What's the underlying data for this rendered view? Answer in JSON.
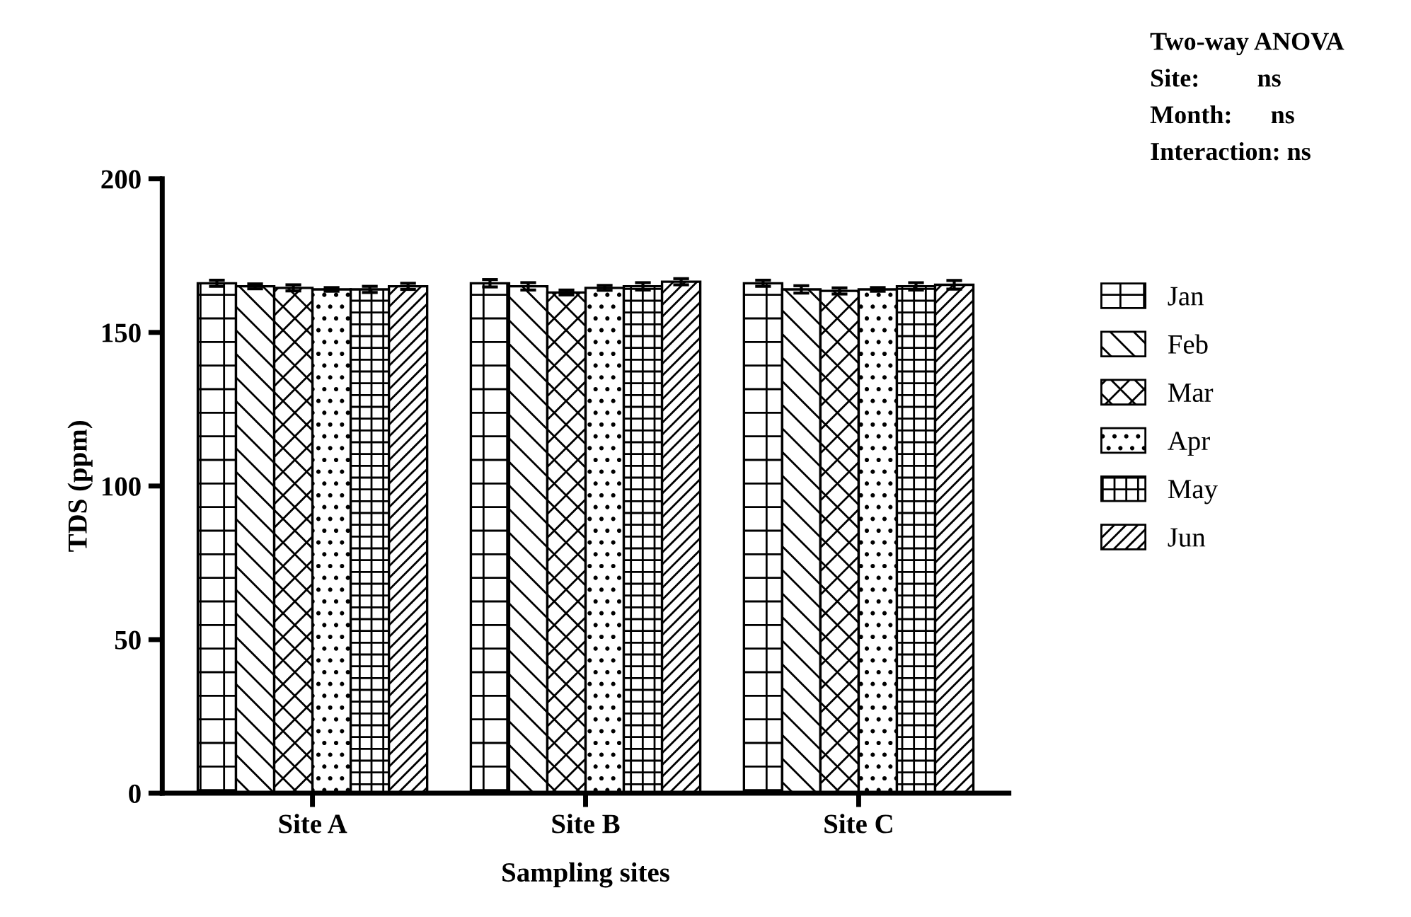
{
  "chart_data": {
    "type": "bar",
    "xlabel": "Sampling sites",
    "ylabel": "TDS (ppm)",
    "categories": [
      "Site A",
      "Site B",
      "Site C"
    ],
    "series": [
      {
        "name": "Jan",
        "color": "#000000",
        "values": [
          166,
          166,
          166
        ],
        "errors": [
          1,
          1.2,
          1
        ]
      },
      {
        "name": "Feb",
        "color": "#000000",
        "values": [
          165,
          165,
          164
        ],
        "errors": [
          0.8,
          1.2,
          1.2
        ]
      },
      {
        "name": "Mar",
        "color": "#000000",
        "values": [
          164.5,
          163,
          163.5
        ],
        "errors": [
          1,
          0.8,
          1
        ]
      },
      {
        "name": "Apr",
        "color": "#000000",
        "values": [
          164,
          164.5,
          164
        ],
        "errors": [
          0.6,
          0.8,
          0.6
        ]
      },
      {
        "name": "May",
        "color": "#000000",
        "values": [
          164,
          165,
          165
        ],
        "errors": [
          1,
          1.2,
          1.2
        ]
      },
      {
        "name": "Jun",
        "color": "#000000",
        "values": [
          165,
          166.5,
          165.5
        ],
        "errors": [
          1,
          1,
          1.4
        ]
      }
    ],
    "ylim": [
      0,
      200
    ],
    "yticks": [
      0,
      50,
      100,
      150,
      200
    ],
    "grid": false,
    "legend": "right",
    "annotations": [
      "Two-way ANOVA",
      "Site:         ns",
      "Month:      ns",
      "Interaction: ns"
    ]
  }
}
